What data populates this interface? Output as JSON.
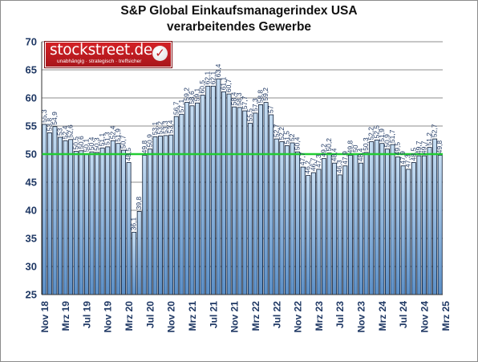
{
  "chart_data": {
    "type": "bar",
    "title": "S&P Global Einkaufsmanagerindex USA",
    "subtitle": "verarbeitendes Gewerbe",
    "ylim": [
      25,
      70
    ],
    "yticks": [
      25,
      30,
      35,
      40,
      45,
      50,
      55,
      60,
      65,
      70
    ],
    "reference_line": 50,
    "grid": true,
    "x_tick_labels": [
      "Nov 18",
      "Mrz 19",
      "Jul 19",
      "Nov 19",
      "Mrz 20",
      "Jul 20",
      "Nov 20",
      "Mrz 21",
      "Jul 21",
      "Nov 21",
      "Mrz 22",
      "Jul 22",
      "Nov 22",
      "Mrz 23",
      "Jul 23",
      "Nov 23",
      "Mrz 24",
      "Jul 24",
      "Nov 24",
      "Mrz 25"
    ],
    "x_tick_every": 4,
    "values": [
      55.3,
      53.8,
      54.9,
      53.0,
      52.4,
      52.6,
      50.5,
      50.6,
      50.1,
      50.4,
      50.3,
      51.1,
      51.3,
      52.4,
      51.9,
      50.7,
      48.5,
      36.1,
      39.8,
      49.8,
      50.9,
      53.1,
      53.2,
      53.3,
      53.4,
      56.7,
      57.1,
      59.2,
      58.6,
      59.1,
      60.5,
      62.1,
      62.1,
      63.4,
      61.1,
      60.7,
      58.4,
      58.3,
      57.7,
      55.5,
      57.3,
      58.8,
      59.2,
      57.0,
      52.7,
      52.2,
      51.5,
      52.0,
      50.4,
      47.7,
      46.2,
      46.7,
      47.3,
      49.2,
      50.2,
      48.4,
      46.3,
      47.9,
      49.8,
      50.0,
      48.4,
      50.3,
      52.2,
      52.5,
      51.9,
      50.9,
      51.7,
      49.5,
      47.9,
      47.3,
      48.5,
      49.7,
      49.7,
      51.2,
      52.7,
      49.8
    ],
    "data_labels": [
      "55,3",
      "53,8",
      "54,9",
      "53",
      "52,4",
      "52,6",
      "50,5",
      "50,6",
      "50,1",
      "50,4",
      "50,3",
      "51,1",
      "51,3",
      "52,4",
      "51,9",
      "50,7",
      "48,5",
      "36,1",
      "39,8",
      "49,8",
      "50,9",
      "53,1",
      "53,2",
      "53,3",
      "53,4",
      "56,7",
      "57,1",
      "59,2",
      "58,6",
      "59,1",
      "60,5",
      "62,1",
      "62,1",
      "63,4",
      "61,1",
      "60,7",
      "58,4",
      "58,3",
      "57,7",
      "55,5",
      "57,3",
      "58,8",
      "59,2",
      "57",
      "52,7",
      "52,2",
      "51,5",
      "52",
      "50,4",
      "47,7",
      "46,2",
      "46,7",
      "47,3",
      "49,2",
      "50,2",
      "48,4",
      "46,3",
      "47,9",
      "49,8",
      "50",
      "48,4",
      "50,3",
      "52,2",
      "52,5",
      "51,9",
      "50,9",
      "51,7",
      "49,5",
      "47,9",
      "47,3",
      "48,5",
      "49,7",
      "49,7",
      "51,2",
      "52,7",
      "49,8"
    ],
    "colors": {
      "bar_fill_top": "#c6ddf2",
      "bar_fill_bottom": "#5b8fc7",
      "bar_stroke": "#0b1a33",
      "reference_line": "#22cc33",
      "grid": "#8c8c8c",
      "tick_text": "#1f3864"
    }
  },
  "logo": {
    "name": "stockstreet.de",
    "tagline": "unabhängig · strategisch · treffsicher",
    "icon": "checkmark-icon"
  }
}
